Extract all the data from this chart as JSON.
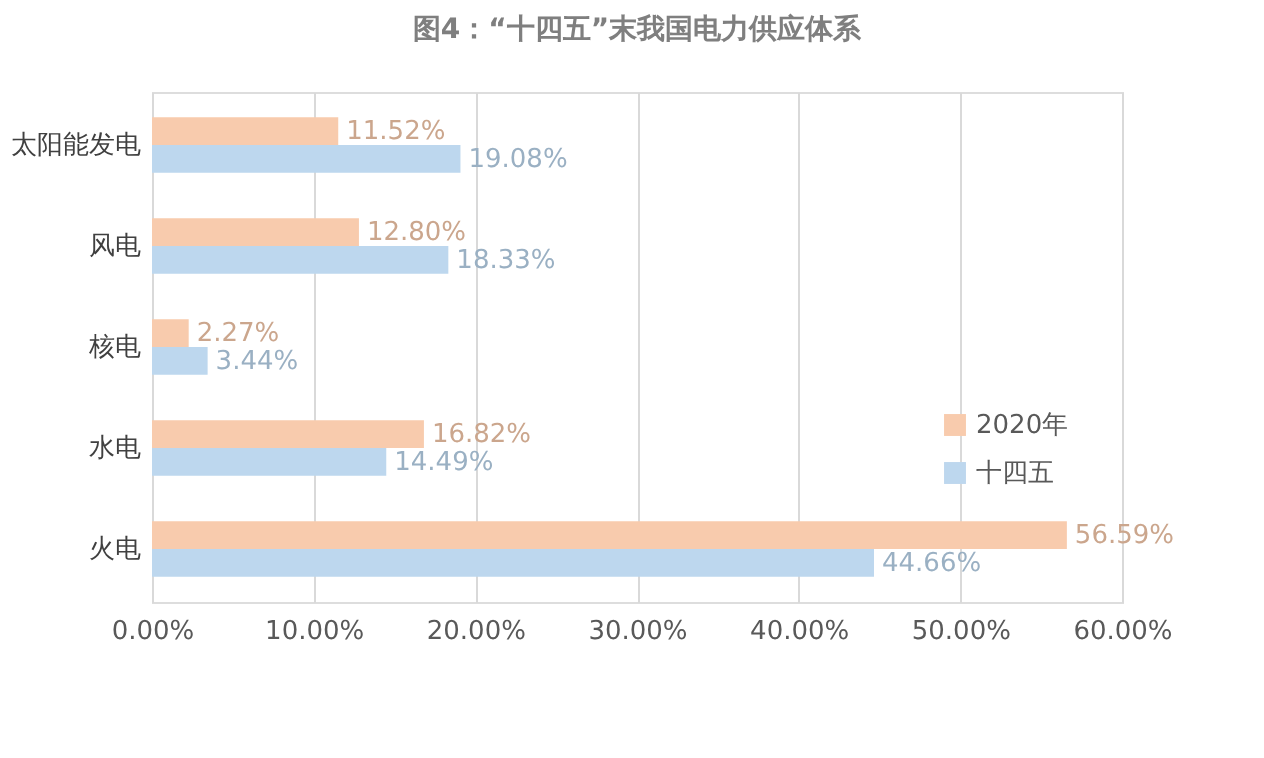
{
  "chart_data": {
    "type": "bar",
    "orientation": "horizontal",
    "title": "图4：“十四五”末我国电力供应体系",
    "categories": [
      "太阳能发电",
      "风电",
      "核电",
      "水电",
      "火电"
    ],
    "series": [
      {
        "name": "2020年",
        "color": "#f8cbad",
        "values": [
          11.52,
          12.8,
          2.27,
          16.82,
          56.59
        ],
        "value_labels": [
          "11.52%",
          "12.80%",
          "2.27%",
          "16.82%",
          "56.59%"
        ]
      },
      {
        "name": "十四五",
        "color": "#bdd7ee",
        "values": [
          19.08,
          18.33,
          3.44,
          14.49,
          44.66
        ],
        "value_labels": [
          "19.08%",
          "18.33%",
          "3.44%",
          "14.49%",
          "44.66%"
        ]
      }
    ],
    "xlim": [
      0,
      60
    ],
    "xticks": [
      {
        "value": 0,
        "label": "0.00%"
      },
      {
        "value": 10,
        "label": "10.00%"
      },
      {
        "value": 20,
        "label": "20.00%"
      },
      {
        "value": 30,
        "label": "30.00%"
      },
      {
        "value": 40,
        "label": "40.00%"
      },
      {
        "value": 50,
        "label": "50.00%"
      },
      {
        "value": 60,
        "label": "60.00%"
      }
    ],
    "grid": "x",
    "legend": "right"
  }
}
